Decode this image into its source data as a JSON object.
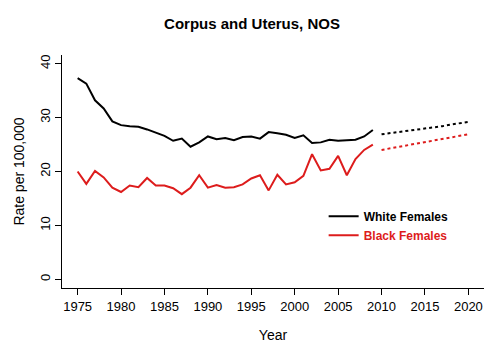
{
  "chart_data": {
    "type": "line",
    "title": "Corpus and Uterus, NOS",
    "x_label": "Year",
    "y_label": "Rate per 100,000",
    "x": [
      1975,
      1976,
      1977,
      1978,
      1979,
      1980,
      1981,
      1982,
      1983,
      1984,
      1985,
      1986,
      1987,
      1988,
      1989,
      1990,
      1991,
      1992,
      1993,
      1994,
      1995,
      1996,
      1997,
      1998,
      1999,
      2000,
      2001,
      2002,
      2003,
      2004,
      2005,
      2006,
      2007,
      2008,
      2009,
      2010,
      2011,
      2012,
      2013,
      2014,
      2015,
      2016,
      2017,
      2018,
      2019,
      2020
    ],
    "series": [
      {
        "name": "White Females",
        "color": "#000000",
        "line_style": "solid",
        "values": [
          37.3,
          36.3,
          33.2,
          31.7,
          29.3,
          28.6,
          28.4,
          28.3,
          27.8,
          27.2,
          26.6,
          25.7,
          26.1,
          24.6,
          25.4,
          26.5,
          26.0,
          26.2,
          25.8,
          26.4,
          26.5,
          26.1,
          27.3,
          27.1,
          26.8,
          26.2,
          26.7,
          25.3,
          25.4,
          25.9,
          25.7,
          25.8,
          25.9,
          26.5,
          27.7,
          null,
          null,
          null,
          null,
          null,
          null,
          null,
          null,
          null,
          null,
          null
        ]
      },
      {
        "name": "Black Females",
        "color": "#dd1c1c",
        "line_style": "solid",
        "values": [
          20.0,
          17.7,
          20.1,
          18.9,
          17.0,
          16.2,
          17.4,
          17.1,
          18.8,
          17.4,
          17.4,
          16.9,
          15.8,
          17.0,
          19.3,
          17.0,
          17.5,
          17.0,
          17.1,
          17.6,
          18.7,
          19.3,
          16.5,
          19.4,
          17.6,
          18.0,
          19.2,
          23.2,
          20.2,
          20.5,
          22.9,
          19.3,
          22.3,
          24.0,
          25.0,
          null,
          null,
          null,
          null,
          null,
          null,
          null,
          null,
          null,
          null,
          null
        ]
      },
      {
        "color": "#000000",
        "line_style": "dotted",
        "values": [
          null,
          null,
          null,
          null,
          null,
          null,
          null,
          null,
          null,
          null,
          null,
          null,
          null,
          null,
          null,
          null,
          null,
          null,
          null,
          null,
          null,
          null,
          null,
          null,
          null,
          null,
          null,
          null,
          null,
          null,
          null,
          null,
          null,
          null,
          null,
          26.9,
          27.1,
          27.3,
          27.5,
          27.8,
          28.0,
          28.2,
          28.4,
          28.7,
          28.9,
          29.2
        ]
      },
      {
        "color": "#dd1c1c",
        "line_style": "dotted",
        "values": [
          null,
          null,
          null,
          null,
          null,
          null,
          null,
          null,
          null,
          null,
          null,
          null,
          null,
          null,
          null,
          null,
          null,
          null,
          null,
          null,
          null,
          null,
          null,
          null,
          null,
          null,
          null,
          null,
          null,
          null,
          null,
          null,
          null,
          null,
          null,
          24.0,
          24.3,
          24.6,
          24.9,
          25.2,
          25.5,
          25.7,
          26.0,
          26.3,
          26.6,
          26.9
        ]
      }
    ],
    "xlim": [
      1973.2,
      2021.8
    ],
    "xticks": [
      1975,
      1980,
      1985,
      1990,
      1995,
      2000,
      2005,
      2010,
      2015,
      2020
    ],
    "ylim": [
      -1.6,
      41.6
    ],
    "yticks": [
      0,
      10,
      20,
      30,
      40
    ],
    "grid": false,
    "legend": "right"
  }
}
